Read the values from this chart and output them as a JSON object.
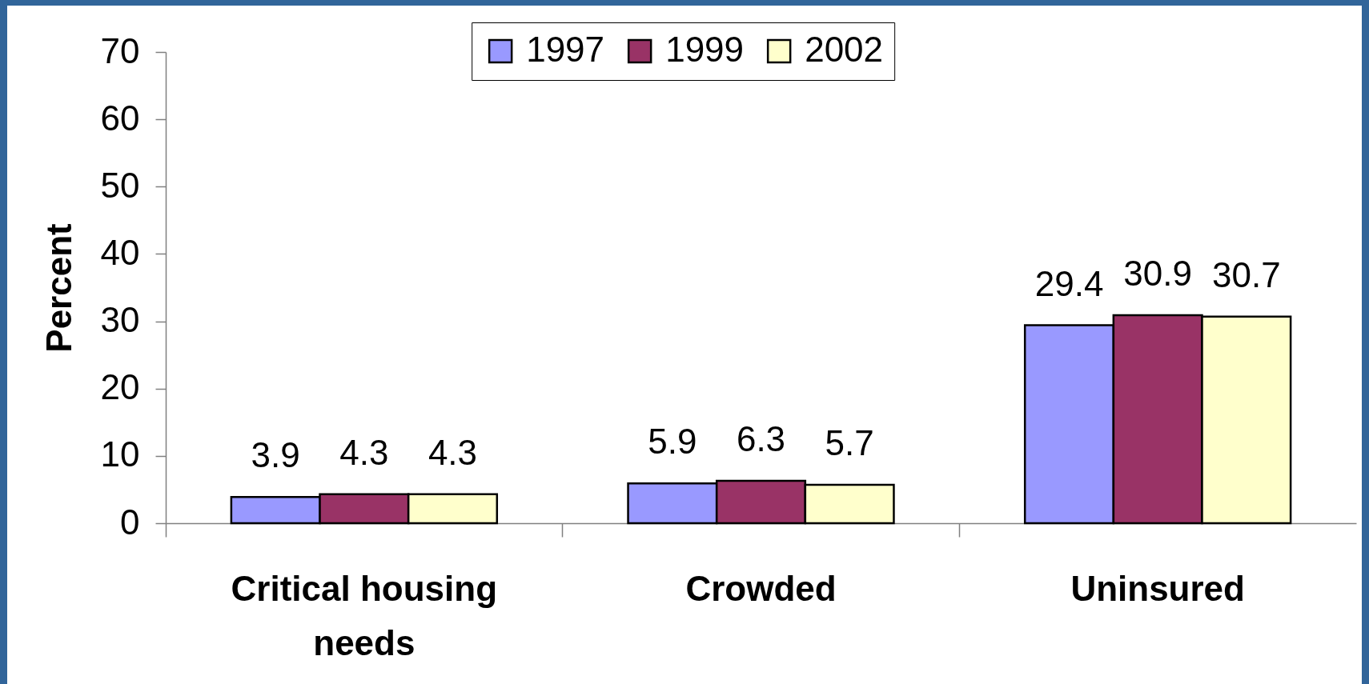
{
  "chart_data": {
    "type": "bar",
    "categories": [
      "Critical housing needs",
      "Crowded",
      "Uninsured"
    ],
    "ylabel": "Percent",
    "series": [
      {
        "name": "1997",
        "color": "#9999ff",
        "values": [
          3.9,
          5.9,
          29.4
        ]
      },
      {
        "name": "1999",
        "color": "#993366",
        "values": [
          4.3,
          6.3,
          30.9
        ]
      },
      {
        "name": "2002",
        "color": "#ffffcc",
        "values": [
          4.3,
          5.7,
          30.7
        ]
      }
    ],
    "ylim": [
      0,
      70
    ],
    "yticks": [
      0,
      10,
      20,
      30,
      40,
      50,
      60,
      70
    ],
    "data_labels": true,
    "legend": "top",
    "grid": false
  }
}
